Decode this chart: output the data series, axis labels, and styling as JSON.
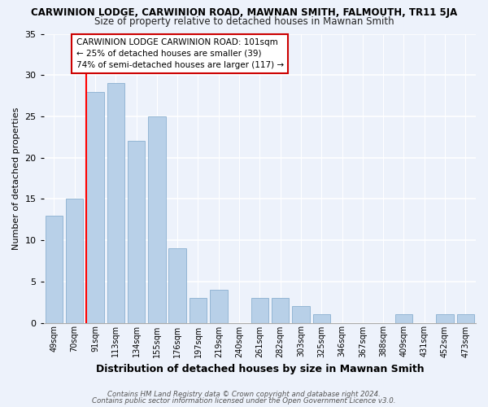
{
  "title": "CARWINION LODGE, CARWINION ROAD, MAWNAN SMITH, FALMOUTH, TR11 5JA",
  "subtitle": "Size of property relative to detached houses in Mawnan Smith",
  "xlabel": "Distribution of detached houses by size in Mawnan Smith",
  "ylabel": "Number of detached properties",
  "categories": [
    "49sqm",
    "70sqm",
    "91sqm",
    "113sqm",
    "134sqm",
    "155sqm",
    "176sqm",
    "197sqm",
    "219sqm",
    "240sqm",
    "261sqm",
    "282sqm",
    "303sqm",
    "325sqm",
    "346sqm",
    "367sqm",
    "388sqm",
    "409sqm",
    "431sqm",
    "452sqm",
    "473sqm"
  ],
  "values": [
    13,
    15,
    28,
    29,
    22,
    25,
    9,
    3,
    4,
    0,
    3,
    3,
    2,
    1,
    0,
    0,
    0,
    1,
    0,
    1,
    1
  ],
  "bar_color": "#b8d0e8",
  "ylim": [
    0,
    35
  ],
  "yticks": [
    0,
    5,
    10,
    15,
    20,
    25,
    30,
    35
  ],
  "annotation_title": "CARWINION LODGE CARWINION ROAD: 101sqm",
  "annotation_line1": "← 25% of detached houses are smaller (39)",
  "annotation_line2": "74% of semi-detached houses are larger (117) →",
  "footer1": "Contains HM Land Registry data © Crown copyright and database right 2024.",
  "footer2": "Contains public sector information licensed under the Open Government Licence v3.0.",
  "background_color": "#edf2fb",
  "red_line_index": 2
}
